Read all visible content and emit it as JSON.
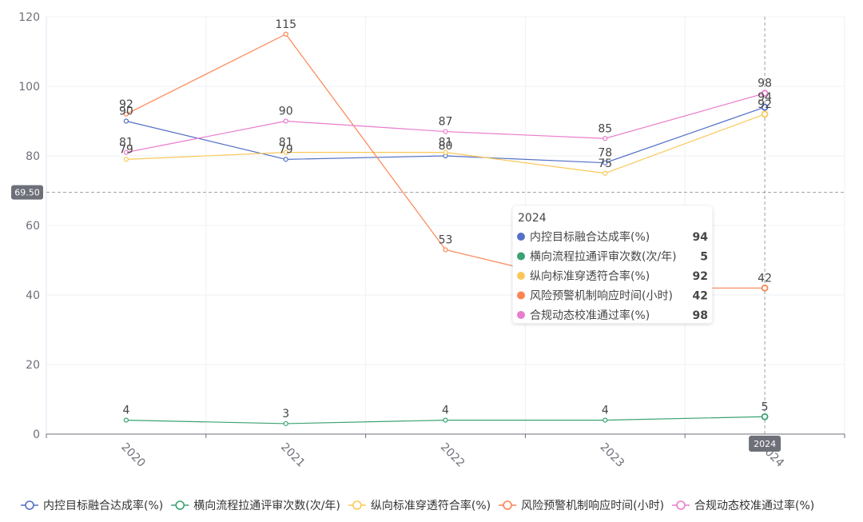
{
  "chart_data": {
    "type": "line",
    "categories": [
      "2020",
      "2021",
      "2022",
      "2023",
      "2024"
    ],
    "ylim": [
      0,
      120
    ],
    "yticks": [
      0,
      20,
      40,
      60,
      80,
      100,
      120
    ],
    "grid": true,
    "legend_position": "bottom",
    "series": [
      {
        "name": "内控目标融合达成率(%)",
        "color": "#5470c6",
        "values": [
          90,
          79,
          80,
          78,
          94
        ]
      },
      {
        "name": "横向流程拉通评审次数(次/年)",
        "color": "#3ba272",
        "values": [
          4,
          3,
          4,
          4,
          5
        ]
      },
      {
        "name": "纵向标准穿透符合率(%)",
        "color": "#fac858",
        "values": [
          79,
          81,
          81,
          75,
          92
        ]
      },
      {
        "name": "风险预警机制响应时间(小时)",
        "color": "#fc8452",
        "values": [
          92,
          115,
          53,
          42,
          42
        ]
      },
      {
        "name": "合规动态校准通过率(%)",
        "color": "#ea7ccc",
        "values": [
          81,
          90,
          87,
          85,
          98
        ]
      }
    ],
    "axis_pointer": {
      "y_value_label": "69.50",
      "x_value_label": "2024"
    },
    "tooltip": {
      "title": "2024",
      "rows": [
        {
          "name": "内控目标融合达成率(%)",
          "value": "94",
          "color": "#5470c6"
        },
        {
          "name": "横向流程拉通评审次数(次/年)",
          "value": "5",
          "color": "#3ba272"
        },
        {
          "name": "纵向标准穿透符合率(%)",
          "value": "92",
          "color": "#fac858"
        },
        {
          "name": "风险预警机制响应时间(小时)",
          "value": "42",
          "color": "#fc8452"
        },
        {
          "name": "合规动态校准通过率(%)",
          "value": "98",
          "color": "#ea7ccc"
        }
      ]
    }
  }
}
